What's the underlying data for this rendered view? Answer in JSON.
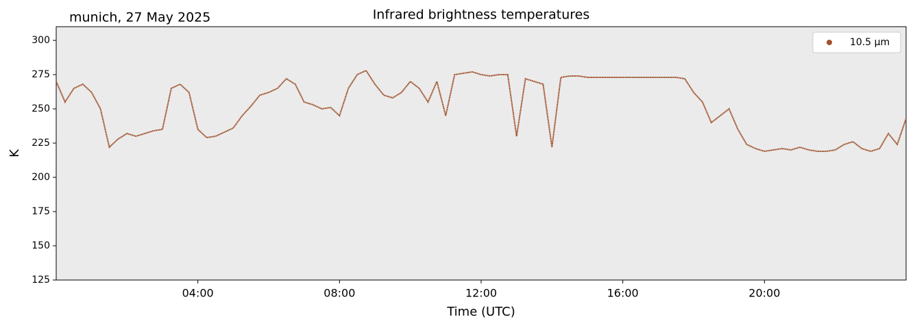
{
  "chart_data": {
    "type": "line",
    "title": "Infrared brightness temperatures",
    "subtitle": "munich, 27 May 2025",
    "xlabel": "Time (UTC)",
    "ylabel": "K",
    "xlim": [
      "00:00",
      "24:00"
    ],
    "xticks": [
      "04:00",
      "08:00",
      "12:00",
      "16:00",
      "20:00"
    ],
    "ylim": [
      125,
      310
    ],
    "yticks": [
      125,
      150,
      175,
      200,
      225,
      250,
      275,
      300
    ],
    "grid": false,
    "legend": "upper right",
    "x": [
      "00:00",
      "00:15",
      "00:30",
      "00:45",
      "01:00",
      "01:15",
      "01:30",
      "01:45",
      "02:00",
      "02:15",
      "02:30",
      "02:45",
      "03:00",
      "03:15",
      "03:30",
      "03:45",
      "04:00",
      "04:15",
      "04:30",
      "04:45",
      "05:00",
      "05:15",
      "05:30",
      "05:45",
      "06:00",
      "06:15",
      "06:30",
      "06:45",
      "07:00",
      "07:15",
      "07:30",
      "07:45",
      "08:00",
      "08:15",
      "08:30",
      "08:45",
      "09:00",
      "09:15",
      "09:30",
      "09:45",
      "10:00",
      "10:15",
      "10:30",
      "10:45",
      "11:00",
      "11:15",
      "11:30",
      "11:45",
      "12:00",
      "12:15",
      "12:30",
      "12:45",
      "13:00",
      "13:15",
      "13:30",
      "13:45",
      "14:00",
      "14:15",
      "14:30",
      "14:45",
      "15:00",
      "15:15",
      "15:30",
      "15:45",
      "16:00",
      "16:15",
      "16:30",
      "16:45",
      "17:00",
      "17:15",
      "17:30",
      "17:45",
      "18:00",
      "18:15",
      "18:30",
      "18:45",
      "19:00",
      "19:15",
      "19:30",
      "19:45",
      "20:00",
      "20:15",
      "20:30",
      "20:45",
      "21:00",
      "21:15",
      "21:30",
      "21:45",
      "22:00",
      "22:15",
      "22:30",
      "22:45",
      "23:00",
      "23:15",
      "23:30",
      "23:45",
      "24:00"
    ],
    "series": [
      {
        "name": "10.5 µm",
        "color": "#a0522d",
        "values": [
          270,
          255,
          265,
          268,
          262,
          250,
          222,
          228,
          232,
          230,
          232,
          234,
          235,
          265,
          268,
          262,
          235,
          229,
          230,
          233,
          236,
          245,
          252,
          260,
          262,
          265,
          272,
          268,
          255,
          253,
          250,
          251,
          245,
          265,
          275,
          278,
          268,
          260,
          258,
          262,
          270,
          265,
          255,
          270,
          245,
          275,
          276,
          277,
          275,
          274,
          275,
          275,
          230,
          272,
          270,
          268,
          222,
          273,
          274,
          274,
          273,
          273,
          273,
          273,
          273,
          273,
          273,
          273,
          273,
          273,
          273,
          272,
          262,
          255,
          240,
          245,
          250,
          235,
          224,
          221,
          219,
          220,
          221,
          220,
          222,
          220,
          219,
          219,
          220,
          224,
          226,
          221,
          219,
          221,
          232,
          224,
          243
        ]
      }
    ]
  }
}
